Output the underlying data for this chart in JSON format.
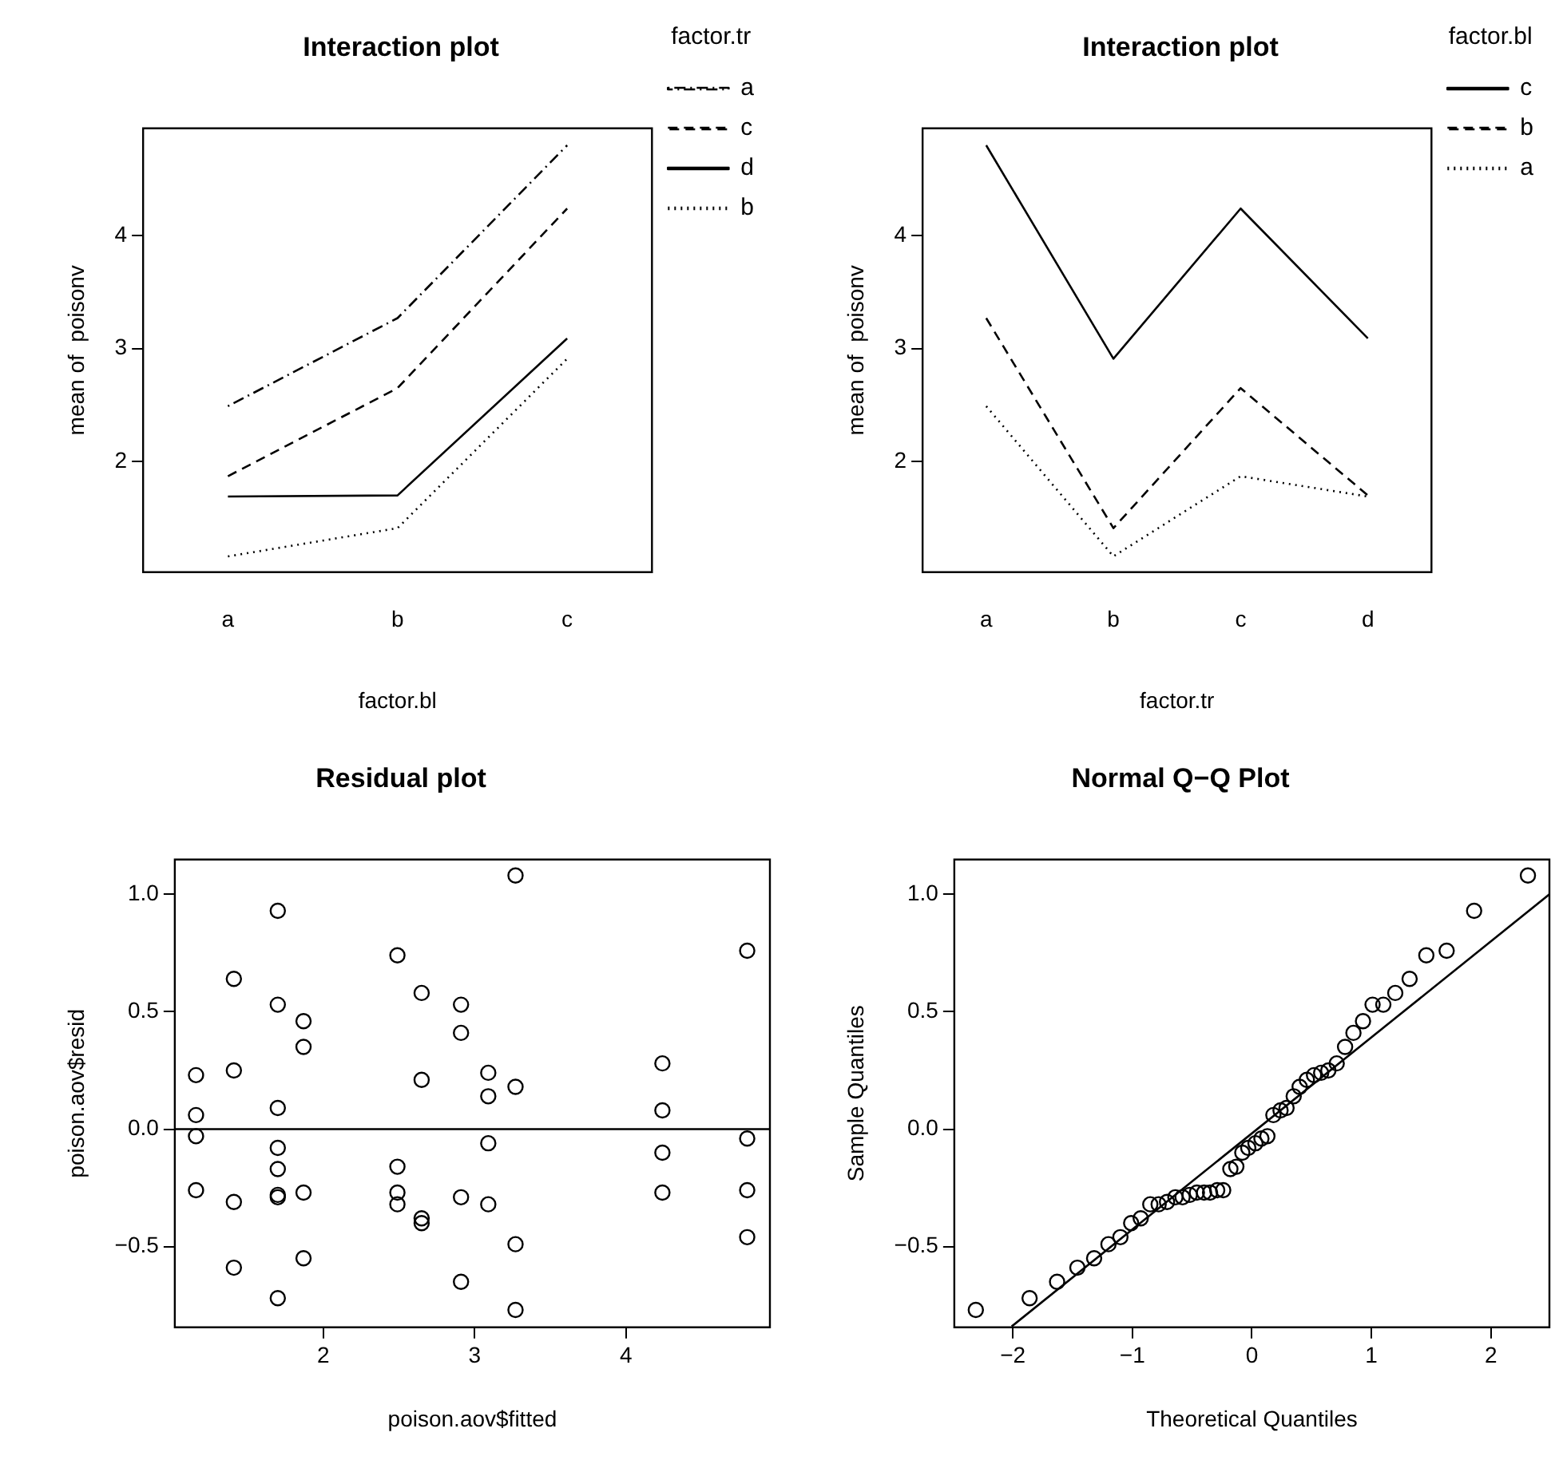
{
  "chart_data": [
    {
      "type": "line",
      "title": "Interaction plot",
      "xlabel": "factor.bl",
      "ylabel": "mean of  poisonv",
      "legend_title": "factor.tr",
      "legend": "right",
      "marker": "none",
      "categories": [
        "a",
        "b",
        "c"
      ],
      "ylim": [
        1.02,
        4.95
      ],
      "yticks": [
        2,
        3,
        4
      ],
      "series": [
        {
          "name": "a",
          "color": "#000000",
          "line_style": "dashdot",
          "values": [
            2.49,
            3.27,
            4.8
          ]
        },
        {
          "name": "c",
          "color": "#000000",
          "line_style": "dashed",
          "values": [
            1.87,
            2.65,
            4.24
          ]
        },
        {
          "name": "d",
          "color": "#000000",
          "line_style": "solid",
          "values": [
            1.69,
            1.7,
            3.09
          ]
        },
        {
          "name": "b",
          "color": "#000000",
          "line_style": "dotted",
          "values": [
            1.16,
            1.41,
            2.91
          ]
        }
      ]
    },
    {
      "type": "line",
      "title": "Interaction plot",
      "xlabel": "factor.tr",
      "ylabel": "mean of  poisonv",
      "legend_title": "factor.bl",
      "legend": "right",
      "marker": "none",
      "categories": [
        "a",
        "b",
        "c",
        "d"
      ],
      "ylim": [
        1.02,
        4.95
      ],
      "yticks": [
        2,
        3,
        4
      ],
      "series": [
        {
          "name": "c",
          "color": "#000000",
          "line_style": "solid",
          "values": [
            4.8,
            2.91,
            4.24,
            3.09
          ]
        },
        {
          "name": "b",
          "color": "#000000",
          "line_style": "dashed",
          "values": [
            3.27,
            1.41,
            2.65,
            1.7
          ]
        },
        {
          "name": "a",
          "color": "#000000",
          "line_style": "dotted",
          "values": [
            2.49,
            1.16,
            1.87,
            1.69
          ]
        }
      ]
    },
    {
      "type": "scatter",
      "title": "Residual plot",
      "xlabel": "poison.aov$fitted",
      "ylabel": "poison.aov$resid",
      "marker": "circle",
      "xlim": [
        1.02,
        4.95
      ],
      "xticks": [
        2,
        3,
        4
      ],
      "ylim": [
        -0.844,
        1.148
      ],
      "yticks": [
        {
          "value": -0.5,
          "label": "−0.5"
        },
        {
          "value": 0,
          "label": "0.0"
        },
        {
          "value": 0.5,
          "label": "0.5"
        },
        {
          "value": 1,
          "label": "1.0"
        }
      ],
      "ref_lines": [
        {
          "axis": "y",
          "value": 0,
          "color": "#000000"
        }
      ],
      "series": [
        {
          "color": "#000000",
          "x": [
            1.16,
            1.16,
            1.16,
            1.16,
            1.41,
            1.41,
            1.41,
            1.41,
            1.7,
            1.7,
            1.7,
            1.7,
            1.7,
            1.7,
            1.7,
            1.7,
            1.87,
            1.87,
            1.87,
            1.87,
            2.49,
            2.49,
            2.49,
            2.49,
            2.65,
            2.65,
            2.65,
            2.65,
            2.91,
            2.91,
            2.91,
            2.91,
            3.09,
            3.09,
            3.09,
            3.09,
            3.27,
            3.27,
            3.27,
            3.27,
            4.24,
            4.24,
            4.24,
            4.24,
            4.8,
            4.8,
            4.8,
            4.8
          ],
          "values": [
            0.23,
            0.06,
            -0.03,
            -0.26,
            0.64,
            0.25,
            -0.31,
            -0.59,
            0.93,
            0.53,
            0.09,
            -0.08,
            -0.17,
            -0.28,
            -0.29,
            -0.72,
            0.46,
            0.35,
            -0.27,
            -0.55,
            0.74,
            -0.16,
            -0.27,
            -0.32,
            0.58,
            0.21,
            -0.38,
            -0.4,
            0.53,
            0.41,
            -0.29,
            -0.65,
            0.24,
            0.14,
            -0.06,
            -0.32,
            1.08,
            0.18,
            -0.49,
            -0.77,
            0.28,
            0.08,
            -0.1,
            -0.27,
            0.76,
            -0.04,
            -0.26,
            -0.46
          ]
        }
      ]
    },
    {
      "type": "scatter",
      "title": "Normal Q−Q Plot",
      "xlabel": "Theoretical Quantiles",
      "ylabel": "Sample Quantiles",
      "marker": "circle",
      "xlim": [
        -2.49,
        2.49
      ],
      "xticks": [
        {
          "value": -2,
          "label": "−2"
        },
        {
          "value": -1,
          "label": "−1"
        },
        0,
        1,
        2
      ],
      "ylim": [
        -0.844,
        1.148
      ],
      "yticks": [
        {
          "value": -0.5,
          "label": "−0.5"
        },
        {
          "value": 0,
          "label": "0.0"
        },
        {
          "value": 0.5,
          "label": "0.5"
        },
        {
          "value": 1,
          "label": "1.0"
        }
      ],
      "series": [
        {
          "color": "#000000",
          "x": [
            -2.31,
            -1.86,
            -1.63,
            -1.46,
            -1.32,
            -1.2,
            -1.1,
            -1.01,
            -0.93,
            -0.85,
            -0.78,
            -0.71,
            -0.64,
            -0.58,
            -0.52,
            -0.46,
            -0.4,
            -0.35,
            -0.29,
            -0.24,
            -0.18,
            -0.13,
            -0.08,
            -0.03,
            0.03,
            0.08,
            0.13,
            0.18,
            0.24,
            0.29,
            0.35,
            0.4,
            0.46,
            0.52,
            0.58,
            0.64,
            0.71,
            0.78,
            0.85,
            0.93,
            1.01,
            1.1,
            1.2,
            1.32,
            1.46,
            1.63,
            1.86,
            2.31
          ],
          "values": [
            -0.77,
            -0.72,
            -0.65,
            -0.59,
            -0.55,
            -0.49,
            -0.46,
            -0.4,
            -0.38,
            -0.32,
            -0.32,
            -0.31,
            -0.29,
            -0.29,
            -0.28,
            -0.27,
            -0.27,
            -0.27,
            -0.26,
            -0.26,
            -0.17,
            -0.16,
            -0.1,
            -0.08,
            -0.06,
            -0.04,
            -0.03,
            0.06,
            0.08,
            0.09,
            0.14,
            0.18,
            0.21,
            0.23,
            0.24,
            0.25,
            0.28,
            0.35,
            0.41,
            0.46,
            0.53,
            0.53,
            0.58,
            0.64,
            0.74,
            0.76,
            0.93,
            1.08
          ]
        },
        {
          "type": "line",
          "color": "#000000",
          "marker": "none",
          "line_style": "solid",
          "x": [
            -2.01,
            2.49
          ],
          "values": [
            -0.84,
            1.0
          ]
        }
      ]
    }
  ]
}
